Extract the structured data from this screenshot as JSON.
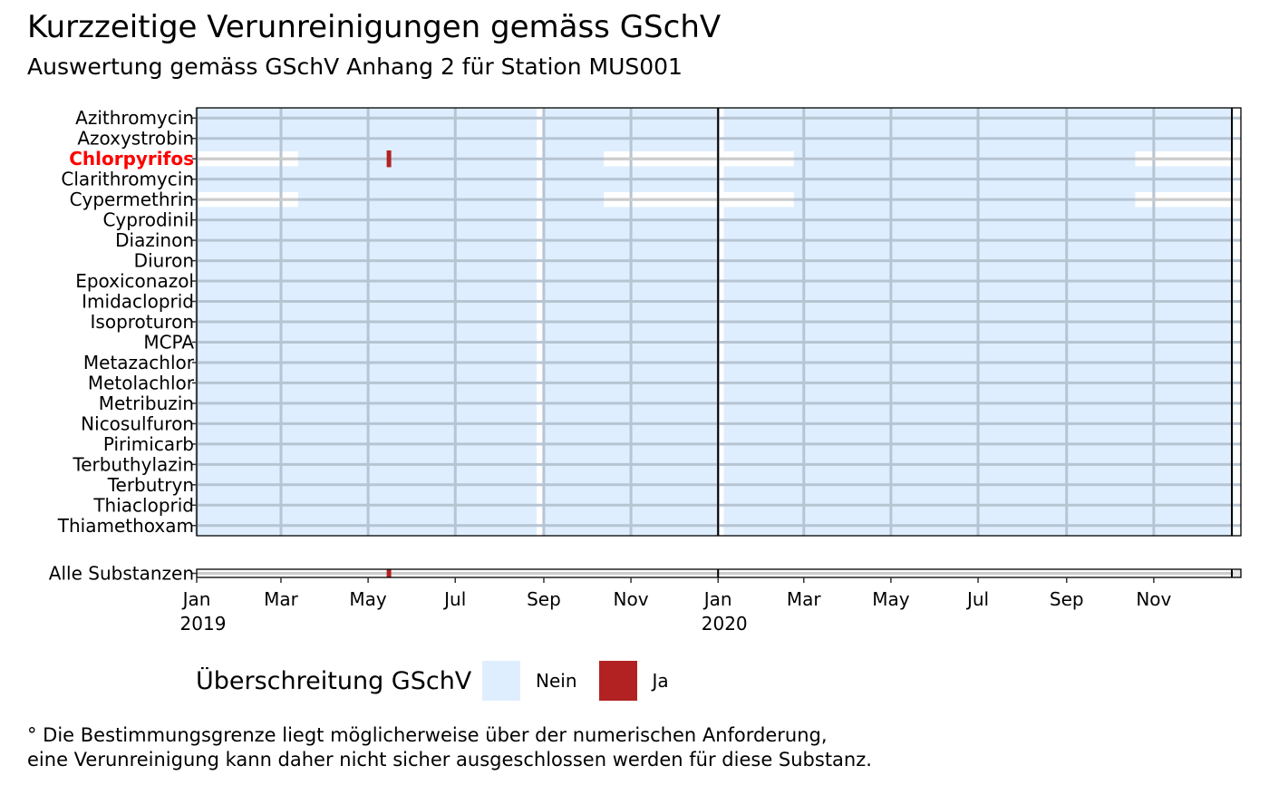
{
  "chart_data": {
    "type": "heatmap",
    "title": "Kurzzeitige Verunreinigungen gemäss GSchV",
    "subtitle": "Auswertung gemäss GSchV Anhang 2 für Station MUS001",
    "x_range": [
      "2019-01-01",
      "2020-12-31"
    ],
    "x_ticks": [
      {
        "date": "2019-01-01",
        "label": "Jan",
        "year": "2019"
      },
      {
        "date": "2019-03-01",
        "label": "Mar",
        "year": ""
      },
      {
        "date": "2019-05-01",
        "label": "May",
        "year": ""
      },
      {
        "date": "2019-07-01",
        "label": "Jul",
        "year": ""
      },
      {
        "date": "2019-09-01",
        "label": "Sep",
        "year": ""
      },
      {
        "date": "2019-11-01",
        "label": "Nov",
        "year": ""
      },
      {
        "date": "2020-01-01",
        "label": "Jan",
        "year": "2020"
      },
      {
        "date": "2020-03-01",
        "label": "Mar",
        "year": ""
      },
      {
        "date": "2020-05-01",
        "label": "May",
        "year": ""
      },
      {
        "date": "2020-07-01",
        "label": "Jul",
        "year": ""
      },
      {
        "date": "2020-09-01",
        "label": "Sep",
        "year": ""
      },
      {
        "date": "2020-11-01",
        "label": "Nov",
        "year": ""
      }
    ],
    "year_boundaries": [
      "2020-01-01",
      "2020-12-31"
    ],
    "substances": [
      {
        "name": "Azithromycin",
        "highlight": false
      },
      {
        "name": "Azoxystrobin",
        "highlight": false
      },
      {
        "name": "Chlorpyrifos",
        "highlight": true
      },
      {
        "name": "Clarithromycin",
        "highlight": false
      },
      {
        "name": "Cypermethrin",
        "highlight": false
      },
      {
        "name": "Cyprodinil",
        "highlight": false
      },
      {
        "name": "Diazinon",
        "highlight": false
      },
      {
        "name": "Diuron",
        "highlight": false
      },
      {
        "name": "Epoxiconazol",
        "highlight": false
      },
      {
        "name": "Imidacloprid",
        "highlight": false
      },
      {
        "name": "Isoproturon",
        "highlight": false
      },
      {
        "name": "MCPA",
        "highlight": false
      },
      {
        "name": "Metazachlor",
        "highlight": false
      },
      {
        "name": "Metolachlor",
        "highlight": false
      },
      {
        "name": "Metribuzin",
        "highlight": false
      },
      {
        "name": "Nicosulfuron",
        "highlight": false
      },
      {
        "name": "Pirimicarb",
        "highlight": false
      },
      {
        "name": "Terbuthylazin",
        "highlight": false
      },
      {
        "name": "Terbutryn",
        "highlight": false
      },
      {
        "name": "Thiacloprid",
        "highlight": false
      },
      {
        "name": "Thiamethoxam",
        "highlight": false
      }
    ],
    "no_data_periods": [
      {
        "start": "2019-08-27",
        "end": "2019-08-30",
        "substances": "all"
      },
      {
        "start": "2019-12-31",
        "end": "2020-01-04",
        "substances": "all"
      },
      {
        "start": "2020-12-27",
        "end": "2020-12-31",
        "substances": "all"
      },
      {
        "start": "2019-01-01",
        "end": "2019-03-12",
        "substances": [
          "Chlorpyrifos",
          "Cypermethrin"
        ]
      },
      {
        "start": "2019-10-13",
        "end": "2020-02-22",
        "substances": [
          "Chlorpyrifos",
          "Cypermethrin"
        ]
      },
      {
        "start": "2020-10-19",
        "end": "2020-12-31",
        "substances": [
          "Chlorpyrifos",
          "Cypermethrin"
        ]
      }
    ],
    "exceedances": [
      {
        "substance": "Chlorpyrifos",
        "start": "2019-05-14",
        "end": "2019-05-16"
      }
    ],
    "summary_row": {
      "label": "Alle Substanzen",
      "exceedances": [
        {
          "start": "2019-05-14",
          "end": "2019-05-16"
        }
      ],
      "no_data_periods": [
        {
          "start": "2020-12-27",
          "end": "2020-12-31"
        }
      ]
    },
    "colors": {
      "nein": "#deeefe",
      "ja": "#b22222",
      "no_data": "#ffffff",
      "grid": "#b7c4d2",
      "highlight_label": "#ff0000",
      "no_data_grid": "#cccccc"
    },
    "legend": {
      "title": "Überschreitung GSchV",
      "items": [
        {
          "label": "Nein",
          "color": "#deeefe"
        },
        {
          "label": "Ja",
          "color": "#b22222"
        }
      ],
      "placement": "bottom"
    }
  },
  "footnote": {
    "line1": "° Die Bestimmungsgrenze liegt möglicherweise über der numerischen Anforderung,",
    "line2": "eine Verunreinigung kann daher nicht sicher ausgeschlossen werden für diese Substanz."
  }
}
